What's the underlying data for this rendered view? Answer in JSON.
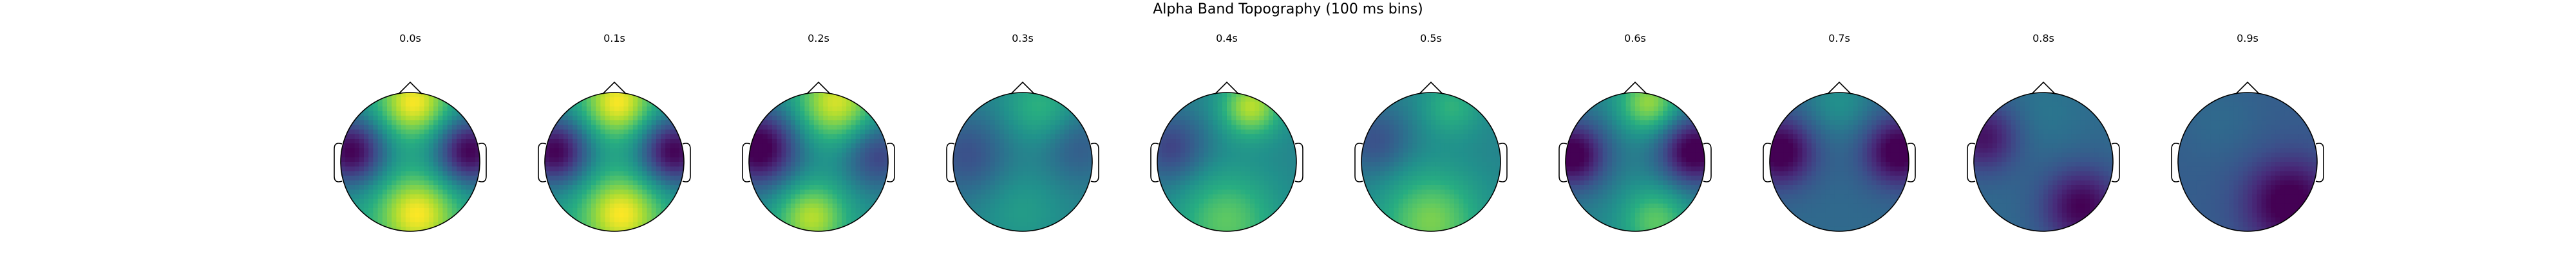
{
  "figure": {
    "title": "Alpha Band Topography (100 ms bins)"
  },
  "chart_data": [
    {
      "type": "topomap",
      "title": "0.0s",
      "pattern": "lateral-low-center-high"
    },
    {
      "type": "topomap",
      "title": "0.1s",
      "pattern": "lateral-low-center-high"
    },
    {
      "type": "topomap",
      "title": "0.2s",
      "pattern": "left-low-center-high"
    },
    {
      "type": "topomap",
      "title": "0.3s",
      "pattern": "flat-mid"
    },
    {
      "type": "topomap",
      "title": "0.4s",
      "pattern": "front-right-high-posterior-high"
    },
    {
      "type": "topomap",
      "title": "0.5s",
      "pattern": "posterior-high"
    },
    {
      "type": "topomap",
      "title": "0.6s",
      "pattern": "lateral-low-center-mid"
    },
    {
      "type": "topomap",
      "title": "0.7s",
      "pattern": "lateral-low"
    },
    {
      "type": "topomap",
      "title": "0.8s",
      "pattern": "left-low-right-posterior-low"
    },
    {
      "type": "topomap",
      "title": "0.9s",
      "pattern": "right-posterior-low"
    }
  ],
  "colors": {
    "colormap": "viridis",
    "outline": "#000000"
  }
}
